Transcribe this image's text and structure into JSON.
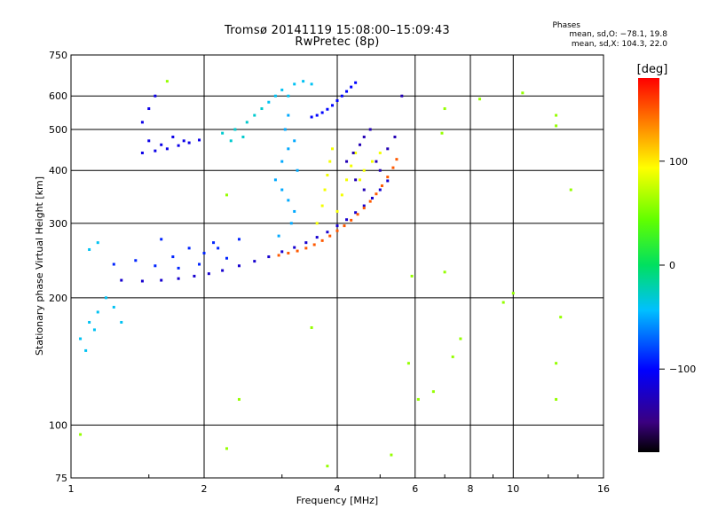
{
  "title_line1": "Tromsø 20141119 15:08:00–15:09:43",
  "title_line2": "RwPretec (8p)",
  "phases_header": "Phases",
  "phases_stat1": "mean, sd,O: −78.1, 19.8",
  "phases_stat2": "mean, sd,X: 104.3, 22.0",
  "colorbar": {
    "unit_label": "[deg]",
    "range": [
      -180,
      180
    ],
    "tick_labels": [
      "100",
      "0",
      "−100"
    ],
    "tick_values": [
      100,
      0,
      -100
    ]
  },
  "chart_data": {
    "type": "scatter",
    "xlabel": "Frequency [MHz]",
    "ylabel": "Stationary phase Virtual Height [km]",
    "xscale": "log",
    "yscale": "log",
    "xlim": [
      1,
      16
    ],
    "ylim": [
      75,
      750
    ],
    "x_ticks": [
      1,
      2,
      4,
      6,
      8,
      10,
      16
    ],
    "x_tick_labels": [
      "1",
      "2",
      "4",
      "6",
      "8",
      "10",
      "16"
    ],
    "y_ticks": [
      75,
      100,
      200,
      300,
      400,
      500,
      600,
      750
    ],
    "y_tick_labels": [
      "75",
      "100",
      "200",
      "300",
      "400",
      "500",
      "600",
      "750"
    ],
    "grid": true,
    "series": [
      {
        "values": [
          [
            1.3,
            220
          ],
          [
            1.45,
            219
          ],
          [
            1.6,
            220
          ],
          [
            1.75,
            222
          ],
          [
            1.9,
            225
          ],
          [
            2.05,
            228
          ],
          [
            2.2,
            232
          ],
          [
            2.4,
            238
          ],
          [
            2.6,
            244
          ],
          [
            2.8,
            250
          ],
          [
            3.0,
            257
          ],
          [
            3.2,
            263
          ],
          [
            3.4,
            270
          ],
          [
            3.6,
            278
          ],
          [
            3.8,
            286
          ],
          [
            4.0,
            296
          ],
          [
            4.2,
            306
          ],
          [
            4.4,
            318
          ],
          [
            4.6,
            330
          ],
          [
            4.8,
            344
          ],
          [
            5.0,
            360
          ],
          [
            5.2,
            378
          ]
        ],
        "phase": -120
      },
      {
        "values": [
          [
            1.25,
            240
          ],
          [
            1.4,
            245
          ],
          [
            1.55,
            238
          ],
          [
            1.7,
            250
          ],
          [
            1.85,
            262
          ],
          [
            2.0,
            255
          ],
          [
            2.1,
            270
          ],
          [
            2.25,
            248
          ],
          [
            2.4,
            275
          ],
          [
            1.6,
            275
          ],
          [
            1.75,
            235
          ],
          [
            1.95,
            240
          ],
          [
            2.15,
            262
          ]
        ],
        "phase": -90
      },
      {
        "values": [
          [
            1.05,
            160
          ],
          [
            1.1,
            175
          ],
          [
            1.15,
            185
          ],
          [
            1.2,
            200
          ],
          [
            1.08,
            150
          ],
          [
            1.13,
            168
          ],
          [
            1.25,
            190
          ],
          [
            1.3,
            175
          ],
          [
            1.1,
            260
          ],
          [
            1.15,
            270
          ]
        ],
        "phase": -40
      },
      {
        "values": [
          [
            1.45,
            440
          ],
          [
            1.55,
            445
          ],
          [
            1.65,
            450
          ],
          [
            1.75,
            458
          ],
          [
            1.85,
            465
          ],
          [
            1.95,
            472
          ],
          [
            1.5,
            470
          ],
          [
            1.6,
            460
          ],
          [
            1.7,
            480
          ],
          [
            1.8,
            470
          ],
          [
            1.45,
            520
          ],
          [
            1.5,
            560
          ],
          [
            1.55,
            600
          ]
        ],
        "phase": -110
      },
      {
        "values": [
          [
            2.2,
            490
          ],
          [
            2.35,
            500
          ],
          [
            2.5,
            520
          ],
          [
            2.6,
            540
          ],
          [
            2.7,
            560
          ],
          [
            2.3,
            470
          ],
          [
            2.45,
            480
          ]
        ],
        "phase": -30
      },
      {
        "values": [
          [
            2.8,
            580
          ],
          [
            2.9,
            600
          ],
          [
            3.0,
            620
          ],
          [
            3.1,
            600
          ],
          [
            3.2,
            640
          ],
          [
            3.35,
            650
          ],
          [
            3.5,
            640
          ]
        ],
        "phase": -40
      },
      {
        "values": [
          [
            3.5,
            535
          ],
          [
            3.6,
            540
          ],
          [
            3.7,
            548
          ],
          [
            3.8,
            558
          ],
          [
            3.9,
            570
          ],
          [
            4.0,
            585
          ],
          [
            4.1,
            600
          ],
          [
            4.2,
            615
          ],
          [
            4.3,
            630
          ],
          [
            4.4,
            645
          ]
        ],
        "phase": -100
      },
      {
        "values": [
          [
            2.9,
            380
          ],
          [
            3.0,
            360
          ],
          [
            3.1,
            340
          ],
          [
            3.2,
            320
          ],
          [
            3.0,
            420
          ],
          [
            3.1,
            450
          ],
          [
            3.2,
            470
          ],
          [
            3.25,
            400
          ],
          [
            3.15,
            300
          ],
          [
            3.05,
            500
          ],
          [
            3.1,
            540
          ],
          [
            2.95,
            280
          ]
        ],
        "phase": -50
      },
      {
        "values": [
          [
            2.95,
            252
          ],
          [
            3.1,
            255
          ],
          [
            3.25,
            258
          ],
          [
            3.4,
            262
          ],
          [
            3.55,
            267
          ],
          [
            3.7,
            273
          ],
          [
            3.85,
            280
          ],
          [
            4.0,
            288
          ],
          [
            4.15,
            296
          ],
          [
            4.3,
            305
          ],
          [
            4.45,
            315
          ],
          [
            4.6,
            326
          ],
          [
            4.75,
            338
          ],
          [
            4.9,
            352
          ],
          [
            5.05,
            368
          ],
          [
            5.2,
            386
          ],
          [
            5.35,
            406
          ],
          [
            5.45,
            425
          ]
        ],
        "phase": 150
      },
      {
        "values": [
          [
            3.6,
            300
          ],
          [
            3.7,
            330
          ],
          [
            3.75,
            360
          ],
          [
            3.8,
            390
          ],
          [
            3.85,
            420
          ],
          [
            3.9,
            450
          ],
          [
            4.0,
            320
          ],
          [
            4.1,
            350
          ],
          [
            4.2,
            380
          ],
          [
            4.3,
            410
          ],
          [
            4.4,
            440
          ],
          [
            4.5,
            380
          ],
          [
            4.6,
            400
          ],
          [
            4.8,
            420
          ],
          [
            5.0,
            440
          ]
        ],
        "phase": 90
      },
      {
        "values": [
          [
            4.2,
            420
          ],
          [
            4.35,
            440
          ],
          [
            4.5,
            460
          ],
          [
            4.6,
            480
          ],
          [
            4.75,
            500
          ],
          [
            4.9,
            420
          ],
          [
            5.0,
            400
          ],
          [
            5.2,
            450
          ],
          [
            5.4,
            480
          ],
          [
            5.6,
            600
          ],
          [
            4.4,
            380
          ],
          [
            4.6,
            360
          ]
        ],
        "phase": -130
      },
      {
        "values": [
          [
            5.8,
            140
          ],
          [
            5.9,
            225
          ],
          [
            6.1,
            115
          ],
          [
            6.6,
            120
          ],
          [
            7.0,
            230
          ],
          [
            7.3,
            145
          ],
          [
            7.6,
            160
          ],
          [
            8.4,
            590
          ],
          [
            9.5,
            195
          ],
          [
            10.0,
            205
          ],
          [
            10.5,
            610
          ],
          [
            12.5,
            510
          ],
          [
            12.5,
            540
          ],
          [
            12.8,
            180
          ],
          [
            12.5,
            140
          ],
          [
            12.5,
            115
          ],
          [
            13.5,
            360
          ],
          [
            6.9,
            490
          ],
          [
            7.0,
            560
          ],
          [
            2.4,
            115
          ],
          [
            2.25,
            350
          ],
          [
            2.25,
            88
          ],
          [
            3.5,
            170
          ],
          [
            3.8,
            80
          ],
          [
            5.3,
            85
          ],
          [
            1.05,
            95
          ],
          [
            1.65,
            650
          ]
        ],
        "phase": 60
      }
    ]
  }
}
